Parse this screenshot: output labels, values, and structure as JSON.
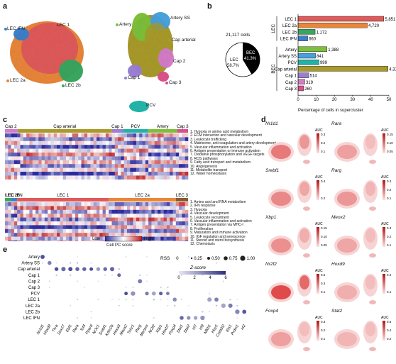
{
  "panel_letters": [
    "a",
    "b",
    "c",
    "d",
    "e"
  ],
  "panel_a": {
    "left_umap_labels": [
      "LEC IFN",
      "LEC 1",
      "LEC 2a",
      "LEC 2b"
    ],
    "right_umap_labels": [
      "Artery",
      "Artery SS",
      "Cap arterial",
      "Cap 2",
      "Cap 1",
      "Cap 3",
      "PCV"
    ]
  },
  "panel_b": {
    "total_cells": "21,117 cells",
    "pie": {
      "bec_label": "BEC",
      "bec_pct": "41.3%",
      "lec_label": "LEC",
      "lec_pct": "58.7%"
    },
    "group_labels": [
      "LEC",
      "BEC"
    ],
    "xlabel": "Percentage of cells in supercluster",
    "xticks": [
      "0",
      "10",
      "20",
      "30",
      "40",
      "50"
    ]
  },
  "chart_data": {
    "type": "bar",
    "orientation": "horizontal",
    "xlabel": "Percentage of cells in supercluster",
    "xlim": [
      0,
      50
    ],
    "groups": [
      {
        "name": "LEC",
        "categories": [
          "LEC 1",
          "LEC 2a",
          "LEC 2b",
          "LEC IFN"
        ],
        "counts": [
          "5,851",
          "4,720",
          "1,172",
          "660"
        ],
        "values": [
          47.2,
          38.1,
          9.4,
          5.3
        ],
        "colors": [
          "#e05a5a",
          "#e8863a",
          "#3aa55e",
          "#3d7fc9"
        ]
      },
      {
        "name": "BEC",
        "categories": [
          "Artery",
          "Artery SS",
          "PCV",
          "Cap arterial",
          "Cap 1",
          "Cap 2",
          "Cap 3"
        ],
        "counts": [
          "1,388",
          "841",
          "999",
          "4,313",
          "514",
          "319",
          "260"
        ],
        "values": [
          15.9,
          9.6,
          11.5,
          49.5,
          5.9,
          3.7,
          3.0
        ],
        "colors": [
          "#7dbf3a",
          "#4aa0d8",
          "#22b3a6",
          "#a89a2a",
          "#9a7fd1",
          "#d47cc8",
          "#d9508a"
        ]
      }
    ]
  },
  "panel_c": {
    "top_clusters": [
      "Cap 2",
      "Cap arterial",
      "Cap 1",
      "PCV",
      "Artery",
      "Cap 3"
    ],
    "top_terms": [
      "1. Hypoxia or amino acid metabolism",
      "2. ECM interaction and vascular development",
      "3. Leukocyte trafficking",
      "4. Matrisome, anti-coagulation and artery development",
      "5. Vascular inflammation and activation",
      "6. Antigen presentation or immune activation",
      "7. Oxidative phosphorylation and VEGF targets",
      "8. ROS pathways",
      "9. Fatty acid transport and metabolism",
      "10. Angiogenesis",
      "11. Metabolite transport",
      "12. Water homeostasis"
    ],
    "bottom_clusters": [
      "LEC 2b",
      "LEC IFN",
      "LEC 1",
      "LEC 2a",
      "LEC 3"
    ],
    "bottom_terms": [
      "1. Amino acid and RNA metabolism",
      "2. IFN response",
      "3. Hypoxia",
      "4. Vascular development",
      "5. Leukocyte recruitment",
      "6. Vascular inflammation and activation",
      "7. Antigen presentation via MHC-I",
      "8. Proliferation",
      "9. Maturation and immune activation",
      "10. IGF regulation and senescence",
      "11. Steroid and sterol biosynthesis",
      "12. Chemotaxis"
    ],
    "colorbar": {
      "low": "Low",
      "high": "High",
      "label": "Cell PC score"
    }
  },
  "panel_d": {
    "genes": [
      "Nr1d1",
      "Rara",
      "Srebf1",
      "Rarg",
      "Xbp1",
      "Meox2",
      "Nr2f2",
      "Hoxd9",
      "Foxp4",
      "Stat2"
    ],
    "auc_label": "AUC",
    "scales": [
      [
        "0.3",
        "0.2",
        "0.1"
      ],
      [
        "0.15",
        "0.10",
        "0.05"
      ],
      [
        "0.4",
        "0.2"
      ],
      [
        "0.3",
        "0.2",
        "0.1"
      ],
      [
        "0.15",
        "0.10",
        "0.05"
      ],
      [
        "0.3",
        "0.2",
        "0.1"
      ],
      [
        "0.5",
        "0.3",
        "0.1"
      ],
      [
        "0.2",
        "0.1"
      ],
      [
        "0.3",
        "0.2",
        "0.1"
      ],
      [
        "0.6",
        "0.4",
        "0.2"
      ]
    ]
  },
  "panel_e": {
    "rows": [
      "Artery",
      "Artery SS",
      "Cap arterial",
      "Cap 1",
      "Cap 2",
      "Cap 3",
      "PCV",
      "LEC 1",
      "LEC 2a",
      "LEC 2b",
      "LEC IFN"
    ],
    "genes": [
      "Nr1d1",
      "Hoxd9",
      "Thra",
      "Sox17",
      "Ebf1",
      "Rara",
      "Tcf4",
      "Ppard",
      "Nr3c1",
      "Srebf1",
      "Kdm2b",
      "Hoxa3",
      "Meox2",
      "Tshz1",
      "Rarg",
      "Mecom",
      "Nr2f2",
      "Xbp1",
      "Hoxb7",
      "Foxp4",
      "Stat1",
      "Stat2",
      "Irf7",
      "Irf9",
      "Nfkb1",
      "Hey1",
      "Creb3l2",
      "Ets1",
      "Prdm1",
      "Irf2"
    ],
    "rss_label": "RSS",
    "rss_values": [
      "0",
      "0.25",
      "0.50",
      "0.75",
      "1.00"
    ],
    "zscore_label": "Z-score",
    "zscore_ticks": [
      "0",
      "2",
      "4",
      "6"
    ]
  },
  "colors": {
    "lec1": "#e05a5a",
    "lec2a": "#e8863a",
    "lec2b": "#3aa55e",
    "lecifn": "#3d7fc9",
    "artery": "#7dbf3a",
    "arteryss": "#4aa0d8",
    "caparterial": "#a89a2a",
    "cap1": "#9a7fd1",
    "cap2": "#d47cc8",
    "cap3": "#d9508a",
    "pcv": "#22b3a6",
    "heat_low": "#2c2ca0",
    "heat_high": "#c01818",
    "dot": "#3b3f8f"
  }
}
